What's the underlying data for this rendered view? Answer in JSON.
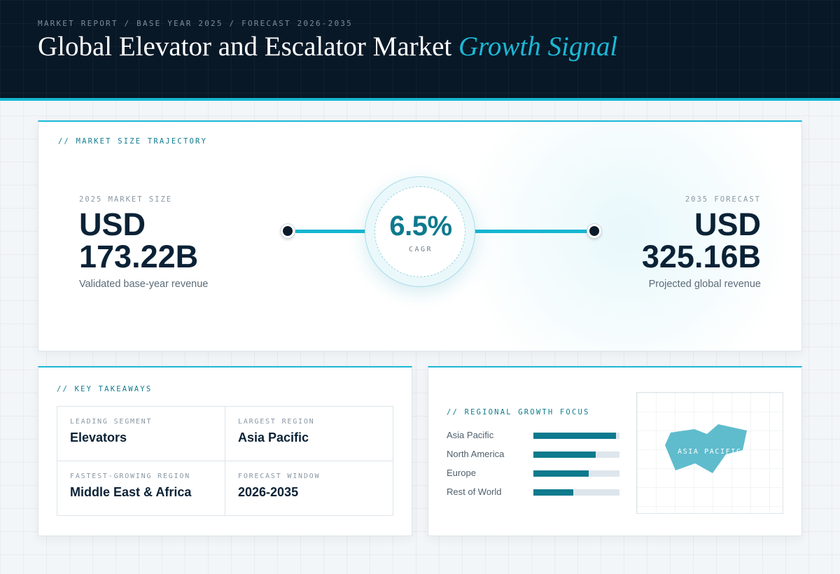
{
  "header": {
    "eyebrow": "MARKET REPORT / BASE YEAR 2025 / FORECAST 2026-2035",
    "title_main": "Global Elevator and Escalator Market",
    "title_accent": "Growth Signal"
  },
  "trajectory": {
    "label": "// MARKET SIZE TRAJECTORY",
    "base": {
      "label": "2025 MARKET SIZE",
      "currency": "USD",
      "value": "173.22B",
      "sub": "Validated base-year revenue"
    },
    "forecast": {
      "label": "2035 FORECAST",
      "currency": "USD",
      "value": "325.16B",
      "sub": "Projected global revenue"
    },
    "cagr": {
      "value": "6.5%",
      "label": "CAGR"
    }
  },
  "takeaways": {
    "label": "// KEY TAKEAWAYS",
    "items": [
      {
        "label": "LEADING SEGMENT",
        "value": "Elevators"
      },
      {
        "label": "LARGEST REGION",
        "value": "Asia Pacific"
      },
      {
        "label": "FASTEST-GROWING REGION",
        "value": "Middle East & Africa"
      },
      {
        "label": "FORECAST WINDOW",
        "value": "2026-2035"
      }
    ]
  },
  "regional": {
    "label": "// REGIONAL GROWTH FOCUS",
    "bars": [
      {
        "name": "Asia Pacific",
        "share": 0.96
      },
      {
        "name": "North America",
        "share": 0.72
      },
      {
        "name": "Europe",
        "share": 0.64
      },
      {
        "name": "Rest of World",
        "share": 0.46
      }
    ],
    "map_label": "ASIA PACIFIC",
    "map_color": "#5fbccd"
  },
  "colors": {
    "accent": "#1cb8d6",
    "bar_fill": "#0d7a8d",
    "header_bg": "#081827"
  }
}
